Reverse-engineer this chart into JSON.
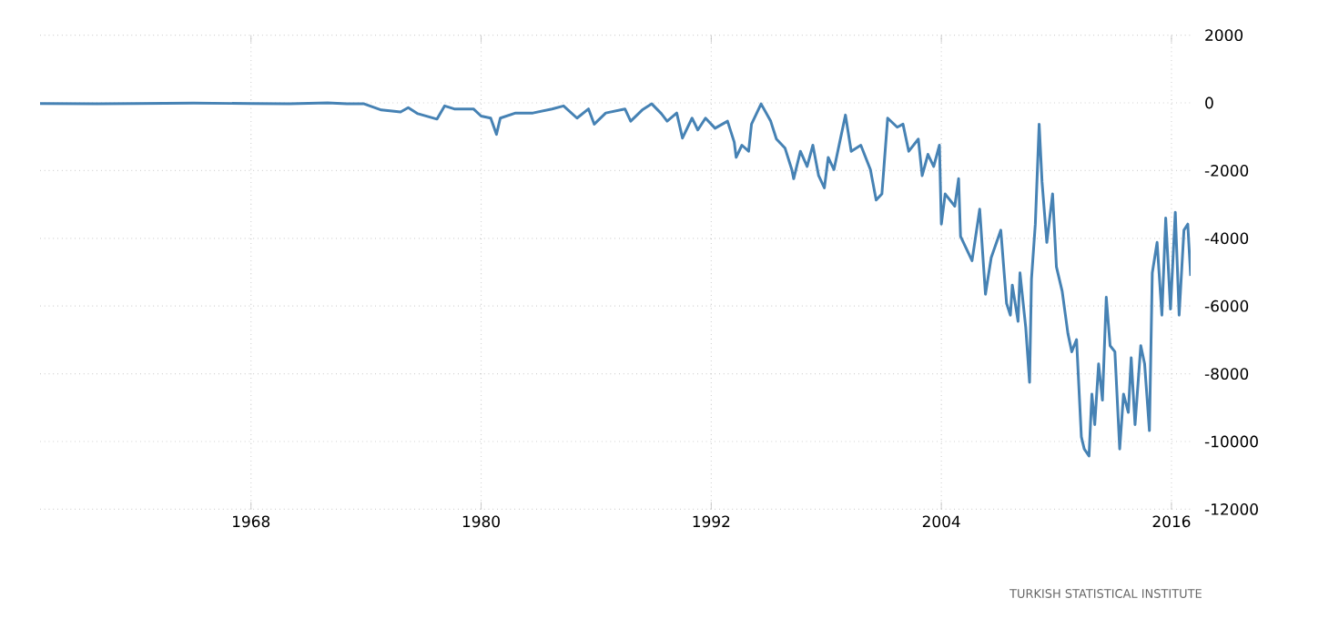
{
  "chart_data": {
    "type": "line",
    "x": [
      1957,
      1960,
      1962,
      1965,
      1968,
      1970,
      1972,
      1973,
      1973.9,
      1974.8,
      1975.8,
      1976.2,
      1976.7,
      1977.7,
      1978.1,
      1978.6,
      1979.6,
      1980.0,
      1980.5,
      1980.8,
      1981.0,
      1981.8,
      1982.7,
      1983.7,
      1984.3,
      1985.0,
      1985.6,
      1985.9,
      1986.5,
      1987.5,
      1987.8,
      1988.4,
      1988.9,
      1989.4,
      1989.7,
      1990.2,
      1990.5,
      1991.0,
      1991.3,
      1991.7,
      1992.2,
      1992.85,
      1993.2,
      1993.3,
      1993.6,
      1993.95,
      1994.1,
      1994.6,
      1995.1,
      1995.4,
      1995.85,
      1996.2,
      1996.3,
      1996.65,
      1997.0,
      1997.3,
      1997.6,
      1997.9,
      1998.1,
      1998.4,
      1998.7,
      1999.0,
      1999.3,
      1999.8,
      2000.3,
      2000.6,
      2000.9,
      2001.2,
      2001.7,
      2002.0,
      2002.3,
      2002.8,
      2003.0,
      2003.3,
      2003.6,
      2003.9,
      2004.0,
      2004.2,
      2004.7,
      2004.9,
      2005.0,
      2005.6,
      2006.0,
      2006.3,
      2006.6,
      2007.1,
      2007.4,
      2007.6,
      2007.7,
      2008.0,
      2008.1,
      2008.4,
      2008.6,
      2008.7,
      2008.9,
      2009.1,
      2009.25,
      2009.5,
      2009.8,
      2010.0,
      2010.3,
      2010.6,
      2010.8,
      2011.05,
      2011.3,
      2011.45,
      2011.7,
      2011.85,
      2012.0,
      2012.2,
      2012.4,
      2012.6,
      2012.8,
      2013.05,
      2013.3,
      2013.5,
      2013.75,
      2013.9,
      2014.1,
      2014.4,
      2014.6,
      2014.85,
      2015.0,
      2015.25,
      2015.5,
      2015.7,
      2015.95,
      2016.2,
      2016.4,
      2016.65,
      2016.85,
      2017.0
    ],
    "values": [
      -20,
      -30,
      -20,
      -10,
      -20,
      -30,
      0,
      -30,
      -30,
      -210,
      -270,
      -140,
      -320,
      -480,
      -90,
      -180,
      -180,
      -390,
      -450,
      -930,
      -450,
      -300,
      -300,
      -180,
      -90,
      -450,
      -180,
      -630,
      -300,
      -180,
      -540,
      -210,
      -30,
      -320,
      -540,
      -300,
      -1040,
      -450,
      -800,
      -450,
      -750,
      -540,
      -1160,
      -1610,
      -1250,
      -1430,
      -630,
      -30,
      -540,
      -1070,
      -1340,
      -1970,
      -2240,
      -1430,
      -1880,
      -1250,
      -2150,
      -2510,
      -1610,
      -1970,
      -1160,
      -360,
      -1430,
      -1250,
      -1970,
      -2870,
      -2690,
      -450,
      -720,
      -630,
      -1430,
      -1070,
      -2150,
      -1520,
      -1880,
      -1250,
      -3580,
      -2690,
      -3050,
      -2240,
      -3940,
      -4660,
      -3140,
      -5650,
      -4570,
      -3760,
      -5920,
      -6270,
      -5380,
      -6450,
      -5020,
      -6630,
      -8250,
      -5200,
      -3580,
      -630,
      -2330,
      -4120,
      -2690,
      -4840,
      -5560,
      -6810,
      -7350,
      -6990,
      -9860,
      -10220,
      -10430,
      -8600,
      -9500,
      -7710,
      -8780,
      -5740,
      -7170,
      -7350,
      -10220,
      -8600,
      -9140,
      -7530,
      -9500,
      -7170,
      -7710,
      -9680,
      -5020,
      -4120,
      -6270,
      -3400,
      -6090,
      -3230,
      -6270,
      -3760,
      -3580,
      -5110
    ],
    "color": "#4682b4",
    "xlim": [
      1957,
      2017
    ],
    "xticks": [
      1968,
      1980,
      1992,
      2004,
      2016
    ],
    "ylim": [
      -12000,
      2000
    ],
    "yticks": [
      -12000,
      -10000,
      -8000,
      -6000,
      -4000,
      -2000,
      0,
      2000
    ],
    "grid": true,
    "marker": "none",
    "line_style": "solid",
    "annotations": [
      "TURKISH STATISTICAL INSTITUTE"
    ]
  }
}
